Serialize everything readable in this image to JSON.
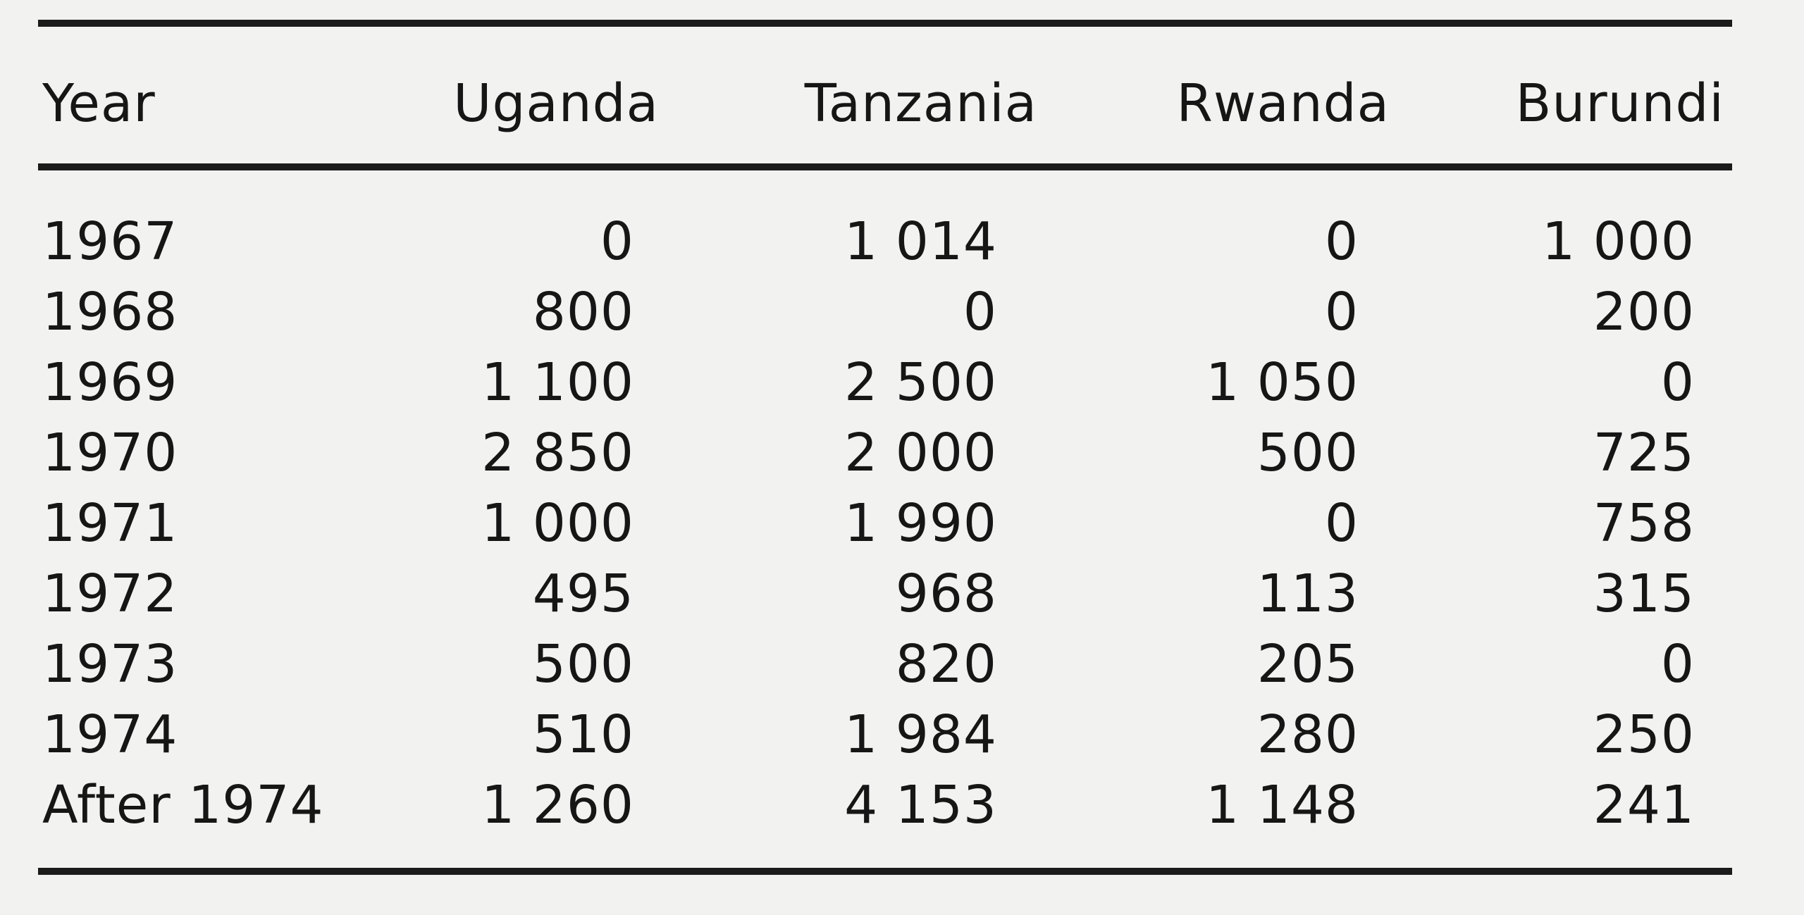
{
  "table": {
    "headers": [
      "Year",
      "Uganda",
      "Tanzania",
      "Rwanda",
      "Burundi"
    ],
    "rows": [
      [
        "1967",
        "0",
        "1 014",
        "0",
        "1 000"
      ],
      [
        "1968",
        "800",
        "0",
        "0",
        "200"
      ],
      [
        "1969",
        "1 100",
        "2 500",
        "1 050",
        "0"
      ],
      [
        "1970",
        "2 850",
        "2 000",
        "500",
        "725"
      ],
      [
        "1971",
        "1 000",
        "1 990",
        "0",
        "758"
      ],
      [
        "1972",
        "495",
        "968",
        "113",
        "315"
      ],
      [
        "1973",
        "500",
        "820",
        "205",
        "0"
      ],
      [
        "1974",
        "510",
        "1 984",
        "280",
        "250"
      ],
      [
        "After 1974",
        "1 260",
        "4 153",
        "1 148",
        "241"
      ]
    ]
  }
}
